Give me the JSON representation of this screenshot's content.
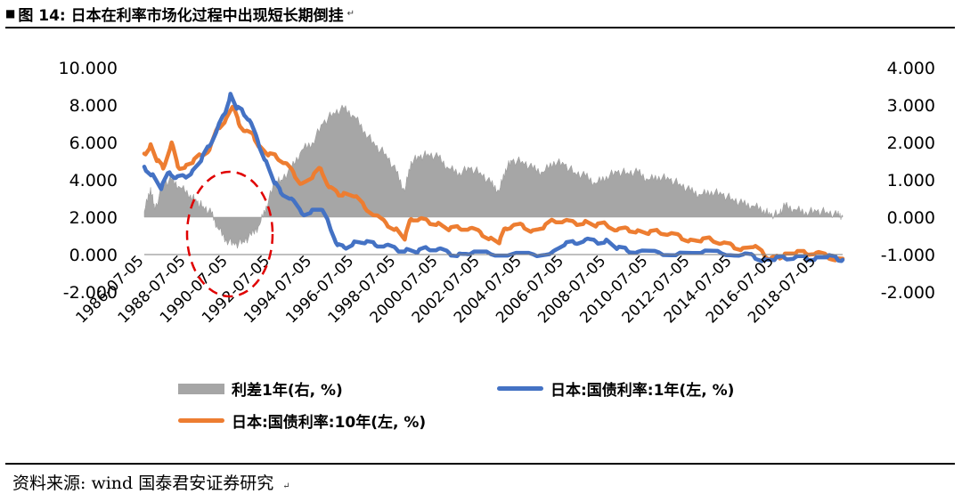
{
  "figure": {
    "marker": "■",
    "title": "图 14: 日本在利率市场化过程中出现短长期倒挂",
    "source": "资料来源: wind 国泰君安证券研究"
  },
  "legend": {
    "spread": "利差1年(右, %)",
    "jgb1y": "日本:国债利率:1年(左, %)",
    "jgb10y": "日本:国债利率:10年(左, %)"
  },
  "colors": {
    "spread": "#a6a6a6",
    "jgb1y": "#4472c4",
    "jgb10y": "#ed7d31",
    "annotation": "#e00000"
  },
  "chart_data": {
    "type": "line",
    "x_ticks": [
      "1986-07-05",
      "1988-07-05",
      "1990-07-05",
      "1992-07-05",
      "1994-07-05",
      "1996-07-05",
      "1998-07-05",
      "2000-07-05",
      "2002-07-05",
      "2004-07-05",
      "2006-07-05",
      "2008-07-05",
      "2010-07-05",
      "2012-07-05",
      "2014-07-05",
      "2016-07-05",
      "2018-07-05"
    ],
    "y_left": {
      "min": -2,
      "max": 10,
      "ticks": [
        "10.000",
        "8.000",
        "6.000",
        "4.000",
        "2.000",
        "0.000",
        "-2.000"
      ]
    },
    "y_right": {
      "min": -2,
      "max": 4,
      "ticks": [
        "4.000",
        "3.000",
        "2.000",
        "1.000",
        "0.000",
        "-1.000",
        "-2.000"
      ]
    },
    "x_range": [
      1986.5,
      2019.75
    ],
    "series": [
      {
        "name": "利差1年(右, %)",
        "type": "area",
        "axis": "right",
        "points": [
          [
            1986.5,
            0.15
          ],
          [
            1986.8,
            0.8
          ],
          [
            1987.0,
            0.2
          ],
          [
            1987.4,
            0.9
          ],
          [
            1987.8,
            1.0
          ],
          [
            1988.2,
            0.8
          ],
          [
            1988.7,
            0.6
          ],
          [
            1989.0,
            0.4
          ],
          [
            1989.3,
            0.3
          ],
          [
            1989.7,
            0.1
          ],
          [
            1990.0,
            -0.3
          ],
          [
            1990.4,
            -0.6
          ],
          [
            1990.8,
            -0.75
          ],
          [
            1991.2,
            -0.65
          ],
          [
            1991.6,
            -0.5
          ],
          [
            1992.0,
            -0.2
          ],
          [
            1992.3,
            0.3
          ],
          [
            1992.7,
            0.9
          ],
          [
            1993.0,
            1.0
          ],
          [
            1993.5,
            1.3
          ],
          [
            1994.0,
            1.8
          ],
          [
            1994.5,
            2.0
          ],
          [
            1995.0,
            2.5
          ],
          [
            1995.5,
            2.8
          ],
          [
            1996.0,
            2.9
          ],
          [
            1996.5,
            2.7
          ],
          [
            1997.0,
            2.3
          ],
          [
            1997.5,
            1.9
          ],
          [
            1998.0,
            1.7
          ],
          [
            1998.5,
            1.2
          ],
          [
            1998.9,
            0.7
          ],
          [
            1999.2,
            1.5
          ],
          [
            1999.6,
            1.6
          ],
          [
            2000.0,
            1.7
          ],
          [
            2000.5,
            1.6
          ],
          [
            2001.0,
            1.3
          ],
          [
            2001.5,
            1.2
          ],
          [
            2002.0,
            1.3
          ],
          [
            2002.5,
            1.2
          ],
          [
            2003.0,
            0.9
          ],
          [
            2003.4,
            0.7
          ],
          [
            2003.7,
            1.3
          ],
          [
            2004.0,
            1.5
          ],
          [
            2004.5,
            1.5
          ],
          [
            2005.0,
            1.3
          ],
          [
            2005.5,
            1.2
          ],
          [
            2006.0,
            1.5
          ],
          [
            2006.5,
            1.4
          ],
          [
            2007.0,
            1.2
          ],
          [
            2007.5,
            1.1
          ],
          [
            2008.0,
            0.9
          ],
          [
            2008.5,
            1.1
          ],
          [
            2009.0,
            1.2
          ],
          [
            2009.5,
            1.2
          ],
          [
            2010.0,
            1.2
          ],
          [
            2010.5,
            1.0
          ],
          [
            2011.0,
            1.1
          ],
          [
            2011.5,
            1.0
          ],
          [
            2012.0,
            0.9
          ],
          [
            2012.5,
            0.7
          ],
          [
            2013.0,
            0.6
          ],
          [
            2013.5,
            0.7
          ],
          [
            2014.0,
            0.6
          ],
          [
            2014.5,
            0.5
          ],
          [
            2015.0,
            0.35
          ],
          [
            2015.5,
            0.3
          ],
          [
            2016.0,
            0.2
          ],
          [
            2016.3,
            0.05
          ],
          [
            2016.7,
            0.1
          ],
          [
            2017.0,
            0.3
          ],
          [
            2017.5,
            0.2
          ],
          [
            2018.0,
            0.15
          ],
          [
            2018.5,
            0.15
          ],
          [
            2019.0,
            0.15
          ],
          [
            2019.5,
            0.05
          ],
          [
            2019.75,
            0.05
          ]
        ]
      },
      {
        "name": "日本:国债利率:1年(左, %)",
        "type": "line",
        "axis": "left",
        "points": [
          [
            1986.5,
            4.7
          ],
          [
            1986.9,
            4.3
          ],
          [
            1987.3,
            3.5
          ],
          [
            1987.7,
            4.4
          ],
          [
            1988.0,
            4.1
          ],
          [
            1988.4,
            4.2
          ],
          [
            1988.8,
            4.5
          ],
          [
            1989.2,
            5.0
          ],
          [
            1989.6,
            5.8
          ],
          [
            1990.0,
            6.8
          ],
          [
            1990.3,
            7.5
          ],
          [
            1990.6,
            8.6
          ],
          [
            1990.9,
            7.8
          ],
          [
            1991.2,
            7.6
          ],
          [
            1991.5,
            7.2
          ],
          [
            1991.9,
            6.1
          ],
          [
            1992.3,
            5.0
          ],
          [
            1992.7,
            3.8
          ],
          [
            1993.0,
            3.3
          ],
          [
            1993.5,
            3.0
          ],
          [
            1994.0,
            2.2
          ],
          [
            1994.5,
            2.4
          ],
          [
            1994.9,
            2.4
          ],
          [
            1995.3,
            1.6
          ],
          [
            1995.7,
            0.5
          ],
          [
            1996.0,
            0.4
          ],
          [
            1996.5,
            0.7
          ],
          [
            1997.0,
            0.6
          ],
          [
            1997.5,
            0.5
          ],
          [
            1998.0,
            0.5
          ],
          [
            1998.5,
            0.3
          ],
          [
            1999.0,
            0.3
          ],
          [
            1999.5,
            0.1
          ],
          [
            2000.0,
            0.3
          ],
          [
            2000.5,
            0.3
          ],
          [
            2001.0,
            0.1
          ],
          [
            2001.5,
            0.05
          ],
          [
            2002.0,
            0.02
          ],
          [
            2003.0,
            0.02
          ],
          [
            2004.0,
            0.02
          ],
          [
            2005.0,
            0.02
          ],
          [
            2006.0,
            0.2
          ],
          [
            2006.5,
            0.5
          ],
          [
            2007.0,
            0.6
          ],
          [
            2007.5,
            0.8
          ],
          [
            2008.0,
            0.7
          ],
          [
            2008.5,
            0.8
          ],
          [
            2009.0,
            0.3
          ],
          [
            2009.5,
            0.2
          ],
          [
            2010.0,
            0.15
          ],
          [
            2011.0,
            0.12
          ],
          [
            2012.0,
            0.1
          ],
          [
            2013.0,
            0.08
          ],
          [
            2014.0,
            0.05
          ],
          [
            2015.0,
            0.0
          ],
          [
            2015.5,
            -0.05
          ],
          [
            2016.0,
            -0.25
          ],
          [
            2016.5,
            -0.3
          ],
          [
            2017.0,
            -0.2
          ],
          [
            2017.5,
            -0.15
          ],
          [
            2018.0,
            -0.15
          ],
          [
            2018.5,
            -0.15
          ],
          [
            2019.0,
            -0.15
          ],
          [
            2019.5,
            -0.25
          ],
          [
            2019.75,
            -0.28
          ]
        ]
      },
      {
        "name": "日本:国债利率:10年(左, %)",
        "type": "line",
        "axis": "left",
        "points": [
          [
            1986.5,
            5.4
          ],
          [
            1986.8,
            5.9
          ],
          [
            1987.1,
            5.0
          ],
          [
            1987.4,
            4.6
          ],
          [
            1987.8,
            6.0
          ],
          [
            1988.1,
            4.7
          ],
          [
            1988.5,
            4.8
          ],
          [
            1988.8,
            4.9
          ],
          [
            1989.2,
            5.3
          ],
          [
            1989.6,
            5.6
          ],
          [
            1990.0,
            6.8
          ],
          [
            1990.4,
            7.3
          ],
          [
            1990.7,
            7.9
          ],
          [
            1991.0,
            7.0
          ],
          [
            1991.3,
            6.6
          ],
          [
            1991.7,
            6.4
          ],
          [
            1992.0,
            5.8
          ],
          [
            1992.4,
            5.3
          ],
          [
            1992.8,
            5.2
          ],
          [
            1993.2,
            4.9
          ],
          [
            1993.6,
            4.4
          ],
          [
            1994.0,
            3.8
          ],
          [
            1994.5,
            4.1
          ],
          [
            1994.9,
            4.6
          ],
          [
            1995.3,
            3.6
          ],
          [
            1995.7,
            3.3
          ],
          [
            1996.0,
            3.3
          ],
          [
            1996.5,
            3.1
          ],
          [
            1997.0,
            2.5
          ],
          [
            1997.5,
            2.1
          ],
          [
            1998.0,
            1.7
          ],
          [
            1998.5,
            1.4
          ],
          [
            1998.9,
            0.8
          ],
          [
            1999.2,
            1.9
          ],
          [
            1999.6,
            1.9
          ],
          [
            2000.0,
            1.8
          ],
          [
            2000.5,
            1.7
          ],
          [
            2001.0,
            1.3
          ],
          [
            2001.5,
            1.4
          ],
          [
            2002.0,
            1.4
          ],
          [
            2002.5,
            1.2
          ],
          [
            2003.0,
            0.9
          ],
          [
            2003.4,
            0.6
          ],
          [
            2003.7,
            1.4
          ],
          [
            2004.0,
            1.5
          ],
          [
            2004.5,
            1.6
          ],
          [
            2005.0,
            1.3
          ],
          [
            2005.5,
            1.4
          ],
          [
            2006.0,
            1.8
          ],
          [
            2006.5,
            1.8
          ],
          [
            2007.0,
            1.7
          ],
          [
            2007.5,
            1.8
          ],
          [
            2008.0,
            1.5
          ],
          [
            2008.5,
            1.6
          ],
          [
            2009.0,
            1.3
          ],
          [
            2009.5,
            1.4
          ],
          [
            2010.0,
            1.3
          ],
          [
            2010.5,
            1.1
          ],
          [
            2011.0,
            1.2
          ],
          [
            2011.5,
            1.1
          ],
          [
            2012.0,
            1.0
          ],
          [
            2012.5,
            0.8
          ],
          [
            2013.0,
            0.7
          ],
          [
            2013.5,
            0.8
          ],
          [
            2014.0,
            0.6
          ],
          [
            2014.5,
            0.5
          ],
          [
            2015.0,
            0.35
          ],
          [
            2015.5,
            0.4
          ],
          [
            2016.0,
            0.0
          ],
          [
            2016.3,
            -0.25
          ],
          [
            2016.7,
            -0.1
          ],
          [
            2017.0,
            0.05
          ],
          [
            2017.5,
            0.05
          ],
          [
            2018.0,
            0.05
          ],
          [
            2018.5,
            0.1
          ],
          [
            2019.0,
            -0.05
          ],
          [
            2019.5,
            -0.2
          ],
          [
            2019.75,
            -0.22
          ]
        ]
      }
    ]
  }
}
